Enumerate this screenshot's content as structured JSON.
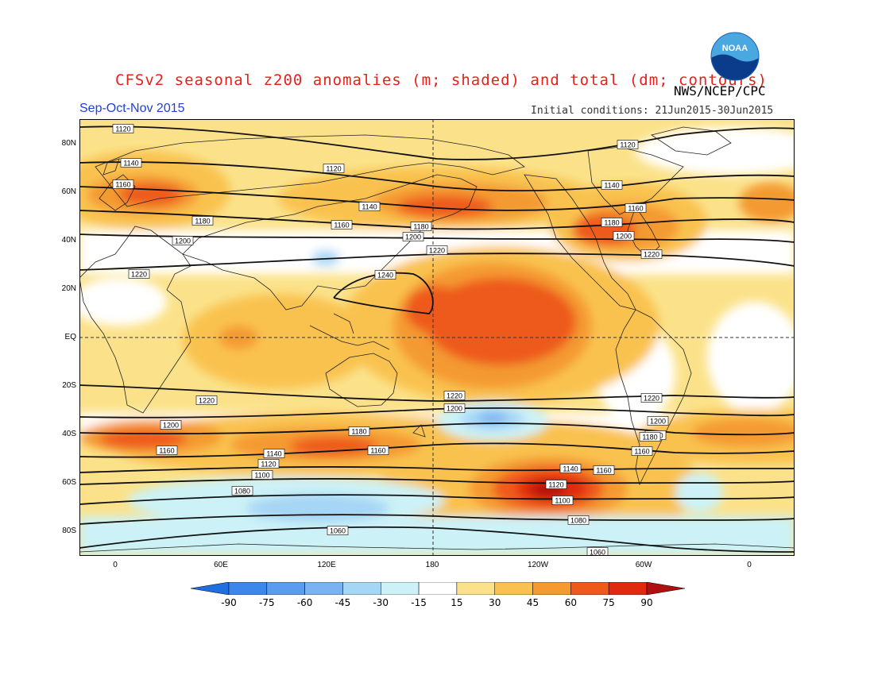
{
  "header": {
    "title": "CFSv2 seasonal z200 anomalies (m; shaded) and total (dm; contours)",
    "org": "NWS/NCEP/CPC",
    "season": "Sep-Oct-Nov 2015",
    "initial_conditions": "Initial conditions: 21Jun2015-30Jun2015"
  },
  "logo": {
    "icon": "noaa-logo",
    "text": "NOAA"
  },
  "axes": {
    "lat_labels": [
      "80N",
      "60N",
      "40N",
      "20N",
      "EQ",
      "20S",
      "40S",
      "60S",
      "80S"
    ],
    "lon_labels": [
      "0",
      "60E",
      "120E",
      "180",
      "120W",
      "60W",
      "0"
    ]
  },
  "colorbar": {
    "labels": [
      "-90",
      "-75",
      "-60",
      "-45",
      "-30",
      "-15",
      "15",
      "30",
      "45",
      "60",
      "75",
      "90"
    ],
    "colors": [
      "#1f6fe0",
      "#3d86eb",
      "#5c9cf0",
      "#7ab2f2",
      "#a6d6f5",
      "#ccf2f7",
      "#ffffff",
      "#fbe28a",
      "#f9c250",
      "#f49a30",
      "#ee5a1a",
      "#e02a10",
      "#b01010"
    ]
  },
  "contour_labels": [
    "1120",
    "1140",
    "1160",
    "1180",
    "1200",
    "1220",
    "1240",
    "1120",
    "1120",
    "1140",
    "1160",
    "1180",
    "1200",
    "1220",
    "1140",
    "1160",
    "1180",
    "1200",
    "1220",
    "1220",
    "1220",
    "1200",
    "1180",
    "1160",
    "1200",
    "1160",
    "1180",
    "1160",
    "1140",
    "1120",
    "1100",
    "1080",
    "1060",
    "1220",
    "1200",
    "1180",
    "1160",
    "1140",
    "1120",
    "1100",
    "1080",
    "1060"
  ]
}
